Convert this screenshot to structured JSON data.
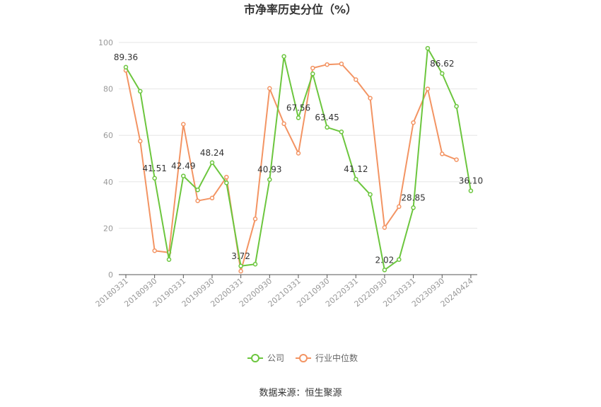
{
  "chart_data": {
    "type": "line",
    "title": "市净率历史分位（%）",
    "x_tick_labels": [
      "20180331",
      "20180930",
      "20190331",
      "20190930",
      "20200331",
      "20200930",
      "20210331",
      "20210930",
      "20220331",
      "20220930",
      "20230331",
      "20230930",
      "20240424"
    ],
    "ylim": [
      0,
      100
    ],
    "y_ticks": [
      0,
      20,
      40,
      60,
      80,
      100
    ],
    "grid": true,
    "legend_position": "bottom-center",
    "series": [
      {
        "name": "公司",
        "color": "#6cc63e",
        "values": [
          89.36,
          79.0,
          41.51,
          6.5,
          42.49,
          36.5,
          48.24,
          39.5,
          3.72,
          4.5,
          40.93,
          94.0,
          67.56,
          86.5,
          63.45,
          61.5,
          41.12,
          34.5,
          2.02,
          6.5,
          28.85,
          97.5,
          86.62,
          72.5,
          36.1
        ],
        "data_labels": [
          {
            "index": 0,
            "text": "89.36"
          },
          {
            "index": 2,
            "text": "41.51"
          },
          {
            "index": 4,
            "text": "42.49"
          },
          {
            "index": 6,
            "text": "48.24"
          },
          {
            "index": 8,
            "text": "3.72"
          },
          {
            "index": 10,
            "text": "40.93"
          },
          {
            "index": 12,
            "text": "67.56"
          },
          {
            "index": 14,
            "text": "63.45"
          },
          {
            "index": 16,
            "text": "41.12"
          },
          {
            "index": 18,
            "text": "2.02"
          },
          {
            "index": 20,
            "text": "28.85"
          },
          {
            "index": 22,
            "text": "86.62"
          },
          {
            "index": 24,
            "text": "36.10"
          }
        ]
      },
      {
        "name": "行业中位数",
        "color": "#f39463",
        "values": [
          88.0,
          57.5,
          10.3,
          9.5,
          64.8,
          31.8,
          33.0,
          42.0,
          1.5,
          24.0,
          80.2,
          65.0,
          52.3,
          89.0,
          90.5,
          90.8,
          84.0,
          76.0,
          20.3,
          29.3,
          65.5,
          80.0,
          52.0,
          49.5,
          null
        ]
      }
    ]
  },
  "footer": {
    "source": "数据来源：恒生聚源"
  }
}
